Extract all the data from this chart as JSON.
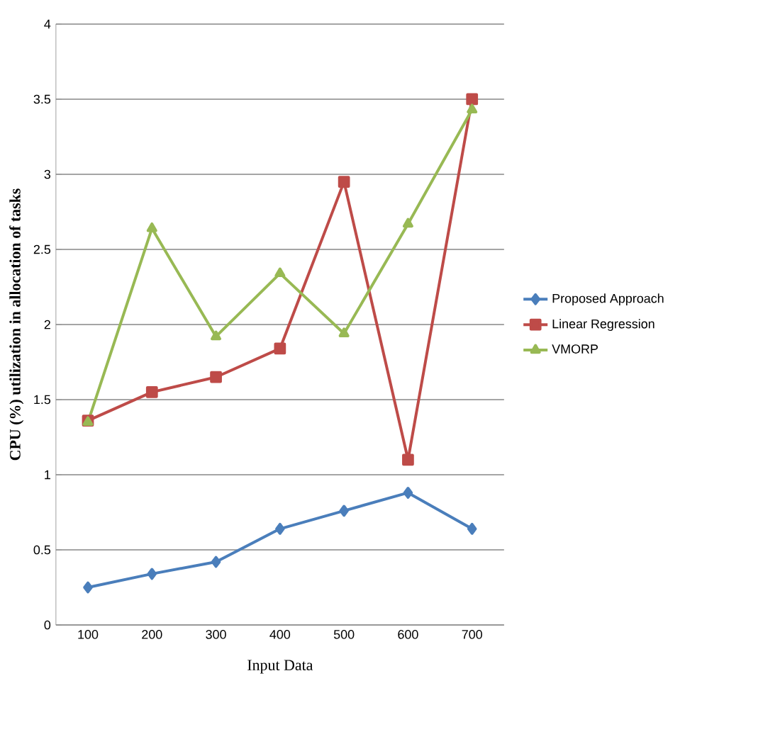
{
  "chart_data": {
    "type": "line",
    "xlabel": "Input Data",
    "ylabel": "CPU (%) utilization in allocation of tasks",
    "categories": [
      "100",
      "200",
      "300",
      "400",
      "500",
      "600",
      "700"
    ],
    "series": [
      {
        "name": "Proposed Approach",
        "color": "#4a7ebb",
        "marker": "diamond",
        "values": [
          0.25,
          0.34,
          0.42,
          0.64,
          0.76,
          0.88,
          0.64
        ]
      },
      {
        "name": "Linear Regression",
        "color": "#be4b48",
        "marker": "square",
        "values": [
          1.36,
          1.55,
          1.65,
          1.84,
          2.95,
          1.1,
          3.5
        ]
      },
      {
        "name": "VMORP",
        "color": "#98b954",
        "marker": "triangle",
        "values": [
          1.35,
          2.64,
          1.92,
          2.34,
          1.94,
          2.67,
          3.43
        ]
      }
    ],
    "ylim": [
      0,
      4
    ],
    "yticks": [
      0,
      0.5,
      1,
      1.5,
      2,
      2.5,
      3,
      3.5,
      4
    ],
    "grid": "y",
    "legend": "right"
  }
}
